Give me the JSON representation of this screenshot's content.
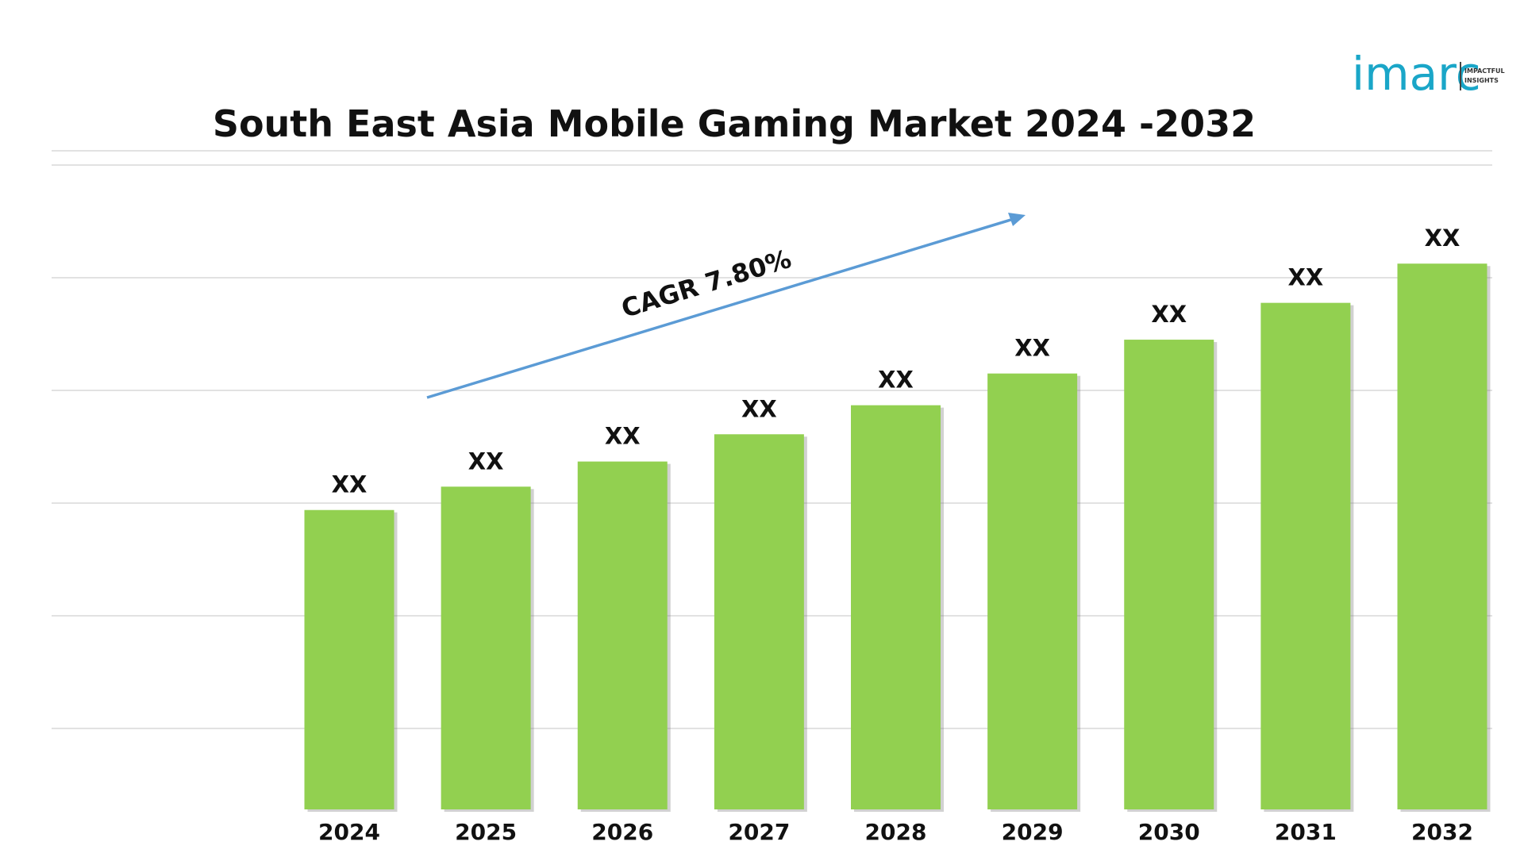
{
  "logo": {
    "brand": "imarc",
    "tagline_line1": "IMPACTFUL",
    "tagline_line2": "INSIGHTS"
  },
  "chart_data": {
    "type": "bar",
    "title": "South East Asia Mobile Gaming Market 2024 -2032",
    "categories": [
      "2024",
      "2025",
      "2026",
      "2027",
      "2028",
      "2029",
      "2030",
      "2031",
      "2032"
    ],
    "values": [
      1.0,
      1.078,
      1.162,
      1.253,
      1.35,
      1.456,
      1.569,
      1.692,
      1.823
    ],
    "data_labels": [
      "XX",
      "XX",
      "XX",
      "XX",
      "XX",
      "XX",
      "XX",
      "XX",
      "XX"
    ],
    "ylim": [
      0,
      2.2
    ],
    "grid": true,
    "annotation": {
      "text": "CAGR 7.80%",
      "arrow": true
    },
    "colors": {
      "bar": "#92d050",
      "arrow": "#5b9bd5",
      "logo": "#1aa6c8"
    }
  }
}
